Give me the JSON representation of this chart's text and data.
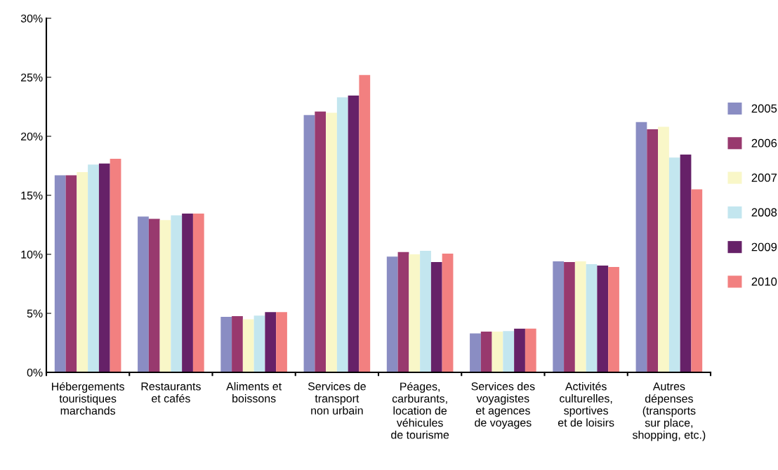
{
  "chart_data": {
    "type": "bar",
    "categories": [
      "Hébergements\ntouristiques\nmarchands",
      "Restaurants\net cafés",
      "Aliments et\nboissons",
      "Services de\ntransport\nnon urbain",
      "Péages,\ncarburants,\nlocation de\nvéhicules\nde tourisme",
      "Services des\nvoyagistes\net agences\nde voyages",
      "Activités\nculturelles,\nsportives\net de loisirs",
      "Autres\ndépenses\n(transports\nsur place,\nshopping, etc.)"
    ],
    "series": [
      {
        "name": "2005",
        "color": "#8a8dc3",
        "values": [
          16.7,
          13.2,
          4.7,
          21.8,
          9.8,
          3.3,
          9.4,
          21.2
        ]
      },
      {
        "name": "2006",
        "color": "#98396e",
        "values": [
          16.7,
          13.0,
          4.76,
          22.1,
          10.2,
          3.45,
          9.35,
          20.6
        ]
      },
      {
        "name": "2007",
        "color": "#f9f7c8",
        "values": [
          16.96,
          12.9,
          4.5,
          22.0,
          10.0,
          3.45,
          9.4,
          20.8
        ]
      },
      {
        "name": "2008",
        "color": "#c3e6ef",
        "values": [
          17.6,
          13.3,
          4.8,
          23.3,
          10.3,
          3.5,
          9.17,
          18.2
        ]
      },
      {
        "name": "2009",
        "color": "#662168",
        "values": [
          17.7,
          13.45,
          5.1,
          23.45,
          9.35,
          3.7,
          9.05,
          18.45
        ]
      },
      {
        "name": "2010",
        "color": "#f28080",
        "values": [
          18.1,
          13.45,
          5.1,
          25.2,
          10.06,
          3.7,
          8.93,
          15.5
        ]
      }
    ],
    "ylim": [
      0,
      30
    ],
    "yticks": [
      {
        "value": 0,
        "label": "0%"
      },
      {
        "value": 5,
        "label": "5%"
      },
      {
        "value": 10,
        "label": "10%"
      },
      {
        "value": 15,
        "label": "15%"
      },
      {
        "value": 20,
        "label": "20%"
      },
      {
        "value": 25,
        "label": "25%"
      },
      {
        "value": 30,
        "label": "30%"
      }
    ],
    "grid": false,
    "legend": "right"
  }
}
